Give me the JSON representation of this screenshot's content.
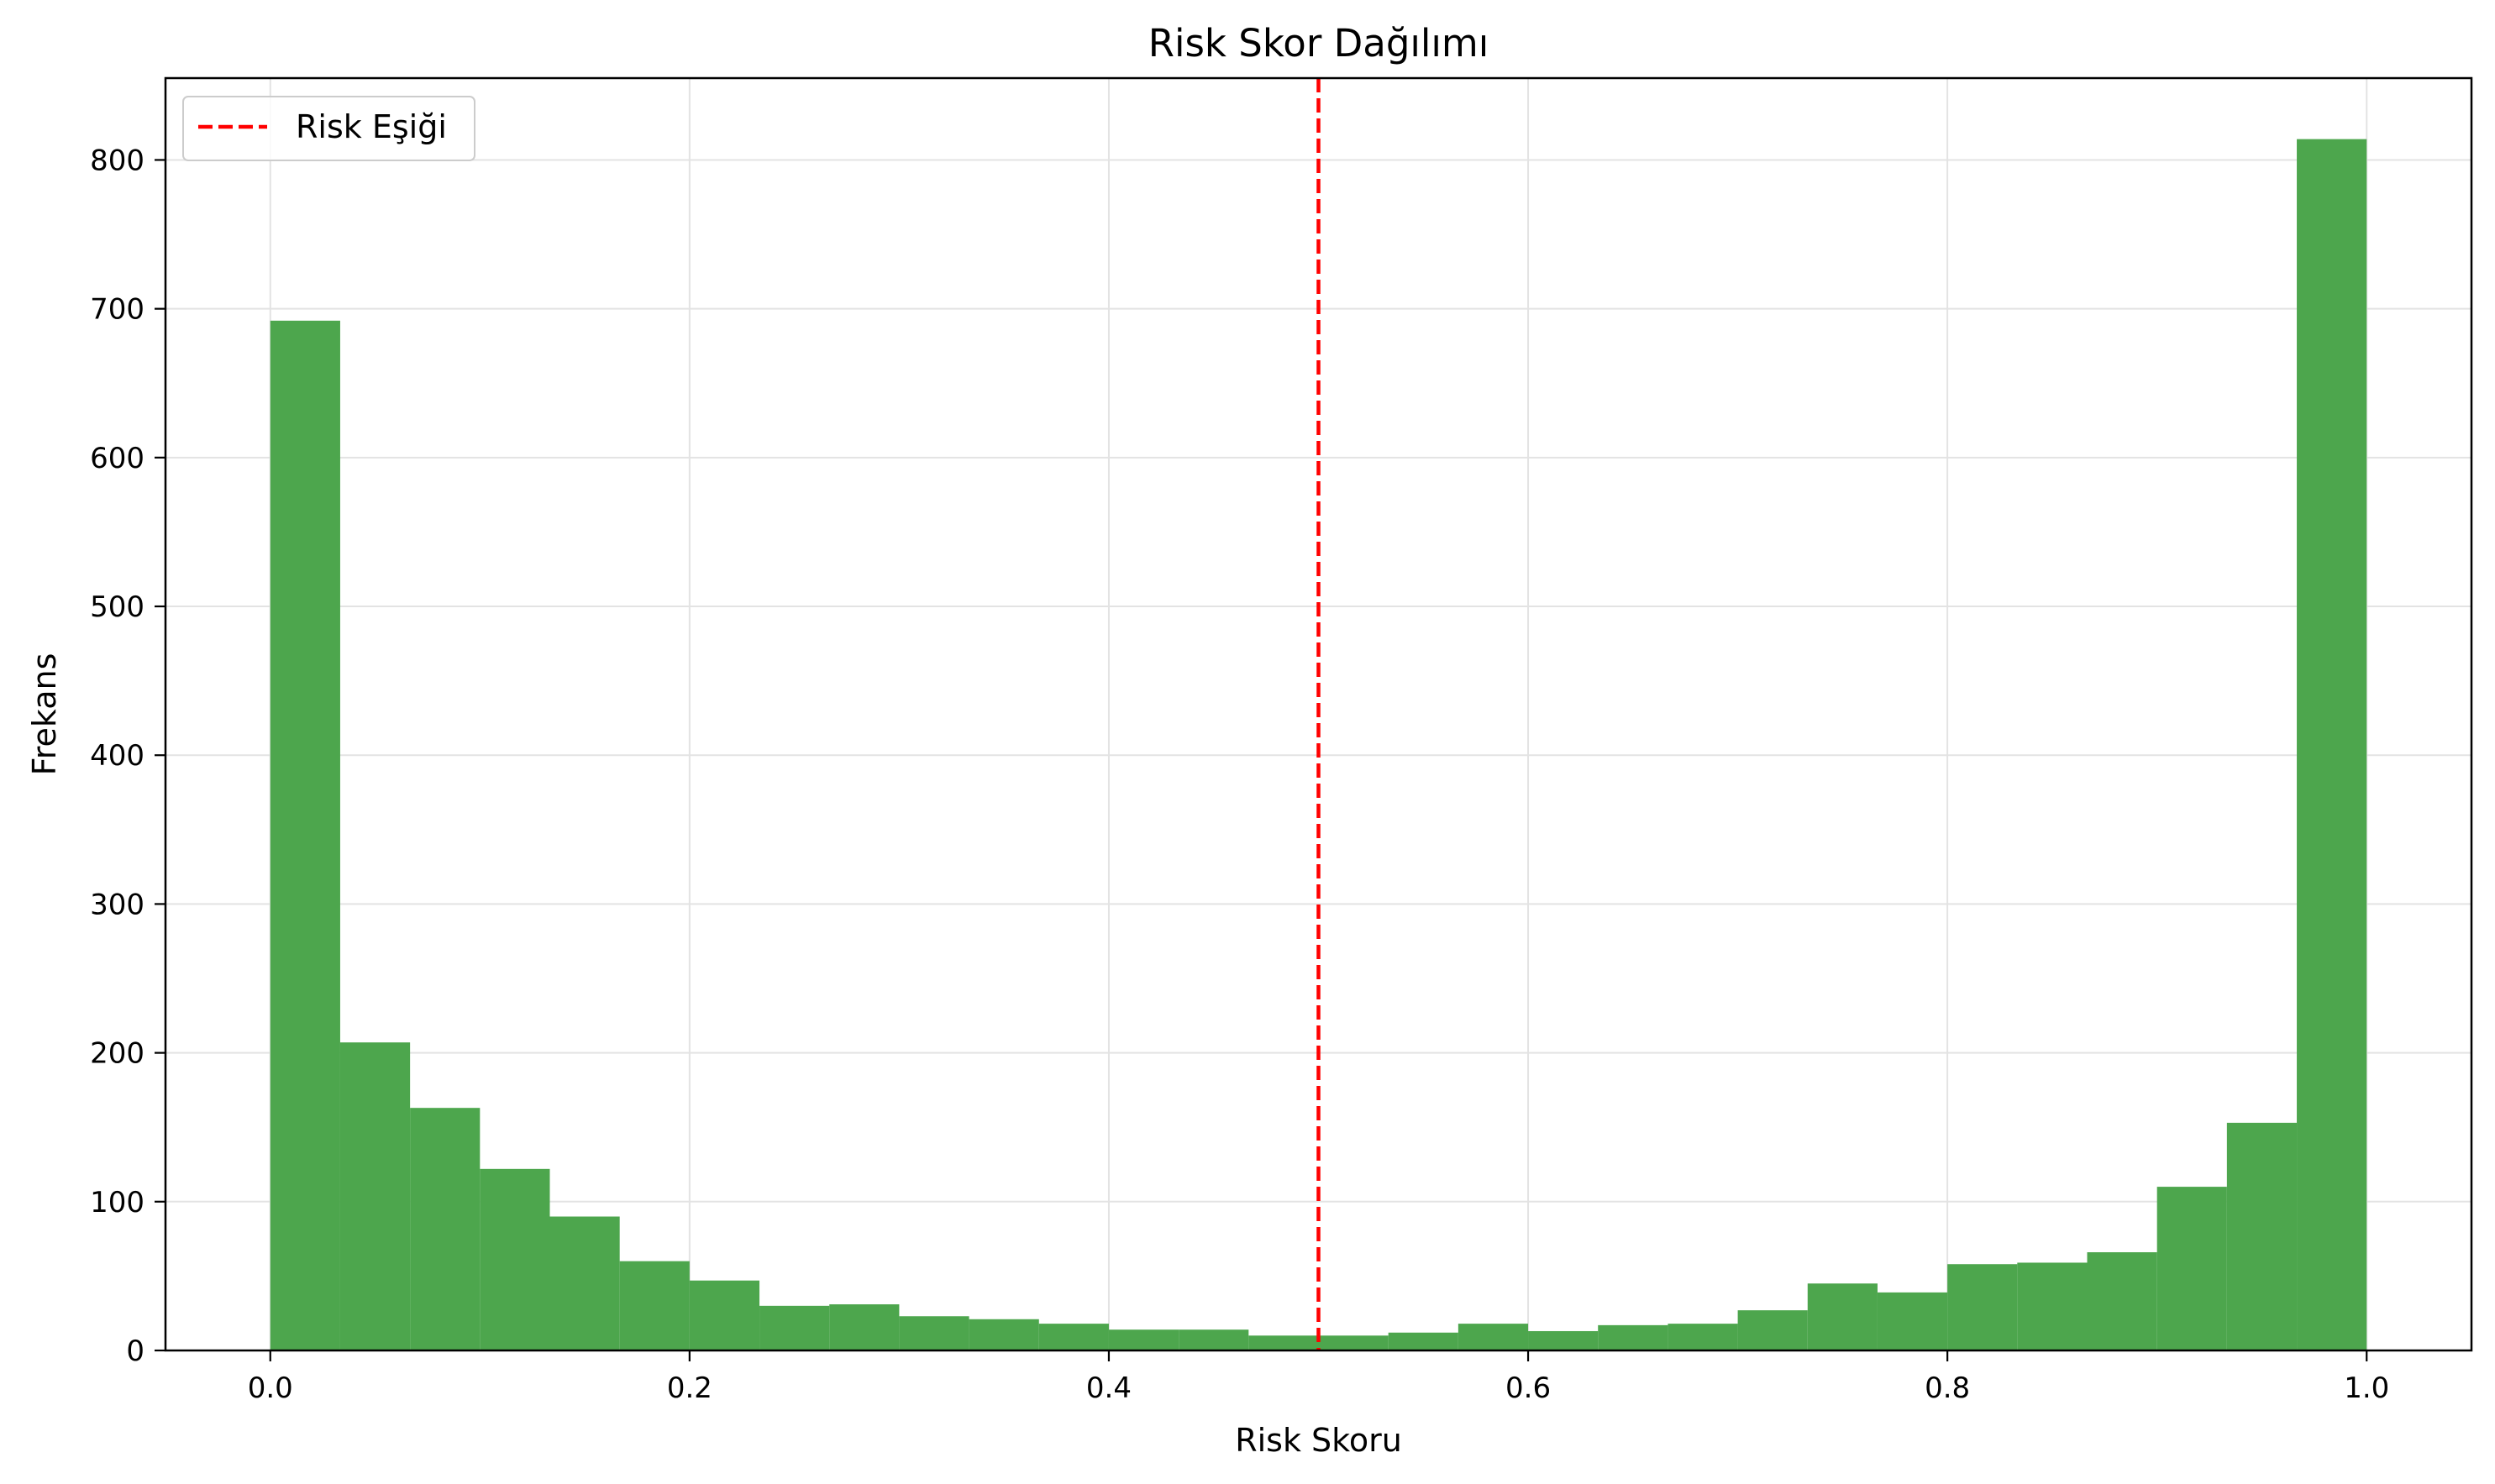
{
  "chart_data": {
    "type": "bar",
    "title": "Risk Skor Dağılımı",
    "xlabel": "Risk Skoru",
    "ylabel": "Frekans",
    "xlim": [
      -0.05,
      1.05
    ],
    "ylim": [
      0,
      855
    ],
    "xticks": [
      0.0,
      0.2,
      0.4,
      0.6,
      0.8,
      1.0
    ],
    "xtick_labels": [
      "0.0",
      "0.2",
      "0.4",
      "0.6",
      "0.8",
      "1.0"
    ],
    "yticks": [
      0,
      100,
      200,
      300,
      400,
      500,
      600,
      700,
      800
    ],
    "ytick_labels": [
      "0",
      "100",
      "200",
      "300",
      "400",
      "500",
      "600",
      "700",
      "800"
    ],
    "grid": true,
    "bin_range": [
      0.0,
      1.0
    ],
    "bin_count": 30,
    "bar_color": "#4da64d",
    "values": [
      692,
      207,
      163,
      122,
      90,
      60,
      47,
      30,
      31,
      23,
      21,
      18,
      14,
      14,
      10,
      10,
      12,
      18,
      13,
      17,
      18,
      27,
      45,
      39,
      58,
      59,
      66,
      110,
      153,
      814
    ],
    "threshold": {
      "x": 0.5,
      "label": "Risk Eşiği",
      "color": "#ff0000",
      "style": "dashed"
    },
    "legend": {
      "position": "top-left",
      "entries": [
        "Risk Eşiği"
      ]
    }
  }
}
